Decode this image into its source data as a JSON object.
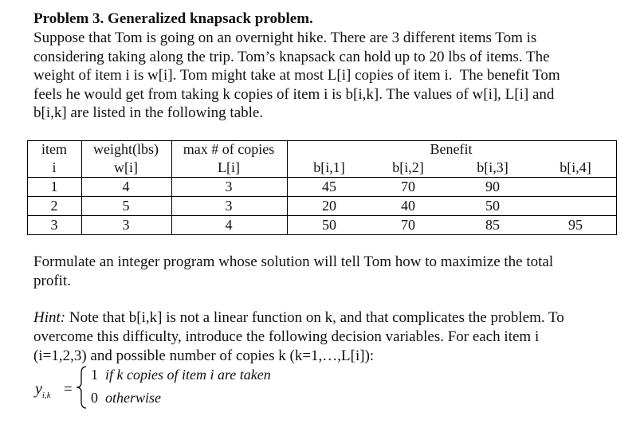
{
  "title": "Problem 3. Generalized knapsack problem.",
  "intro": [
    "Suppose that Tom is going on an overnight hike. There are 3 different items Tom is",
    "considering taking along the trip. Tom’s knapsack can hold up to 20 lbs of items. The",
    "weight of item i is w[i]. Tom might take at most L[i] copies of item i.  The benefit Tom",
    "feels he would get from taking k copies of item i is b[i,k]. The values of w[i], L[i] and",
    "b[i,k] are listed in the following table."
  ],
  "table": {
    "header": [
      "item",
      "weight(lbs)",
      "max # of copies",
      "Benefit"
    ],
    "subheader": [
      "i",
      "w[i]",
      "L[i]",
      "b[i,1]",
      "b[i,2]",
      "b[i,3]",
      "b[i,4]"
    ],
    "rows": [
      [
        1,
        4,
        3,
        45,
        70,
        90
      ],
      [
        2,
        5,
        3,
        20,
        40,
        50
      ],
      [
        3,
        3,
        4,
        50,
        70,
        85,
        95
      ]
    ]
  },
  "formulate": [
    "Formulate an integer program whose solution will tell Tom how to maximize the total",
    "profit."
  ],
  "hint": {
    "label": "Hint:",
    "lines": [
      " Note that b[i,k] is not a linear function on k, and that complicates the problem. To",
      "overcome this difficulty, introduce the following decision variables. For each item i",
      "(i=1,2,3) and possible number of copies k (k=1,…,L[i]):"
    ]
  },
  "formula": {
    "variable": "y",
    "subscript": "i,k",
    "equals": "=",
    "cases": [
      {
        "value": "1",
        "condition": "if k copies of item i are taken"
      },
      {
        "value": "0",
        "condition": "otherwise"
      }
    ]
  }
}
